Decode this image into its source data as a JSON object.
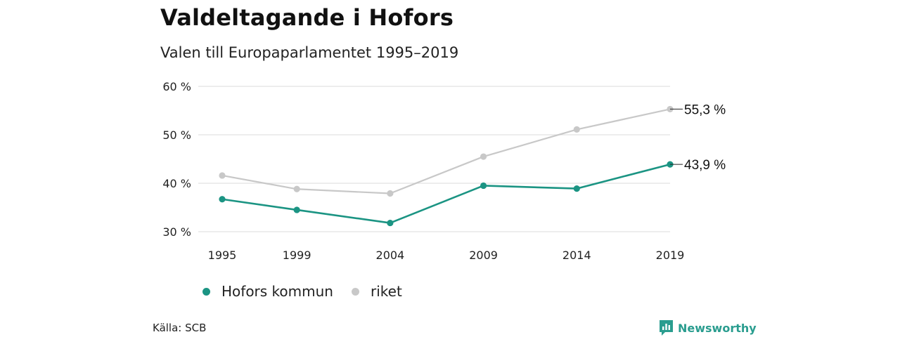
{
  "title": "Valdeltagande i Hofors",
  "subtitle": "Valen till Europaparlamentet 1995–2019",
  "source": "Källa: SCB",
  "brand": {
    "name": "Newsworthy",
    "color": "#2a9d8f",
    "icon": "bar-chart-speech-bubble-icon"
  },
  "legend": [
    {
      "label": "Hofors kommun",
      "color": "#1b9483"
    },
    {
      "label": "riket",
      "color": "#c8c8c8"
    }
  ],
  "chart_data": {
    "type": "line",
    "title": "Valdeltagande i Hofors",
    "subtitle": "Valen till Europaparlamentet 1995–2019",
    "xlabel": "",
    "ylabel": "",
    "categories": [
      "1995",
      "1999",
      "2004",
      "2009",
      "2014",
      "2019"
    ],
    "x": [
      1995,
      1999,
      2004,
      2009,
      2014,
      2019
    ],
    "ylim": [
      30,
      60
    ],
    "yticks": [
      30,
      40,
      50,
      60
    ],
    "ytick_labels": [
      "30 %",
      "40 %",
      "50 %",
      "60 %"
    ],
    "grid": true,
    "legend_position": "bottom-left",
    "series": [
      {
        "name": "riket",
        "color": "#c8c8c8",
        "values": [
          41.6,
          38.8,
          37.9,
          45.5,
          51.1,
          55.3
        ],
        "end_label": "55,3 %"
      },
      {
        "name": "Hofors kommun",
        "color": "#1b9483",
        "values": [
          36.7,
          34.5,
          31.8,
          39.5,
          38.9,
          43.9
        ],
        "end_label": "43,9 %"
      }
    ]
  }
}
